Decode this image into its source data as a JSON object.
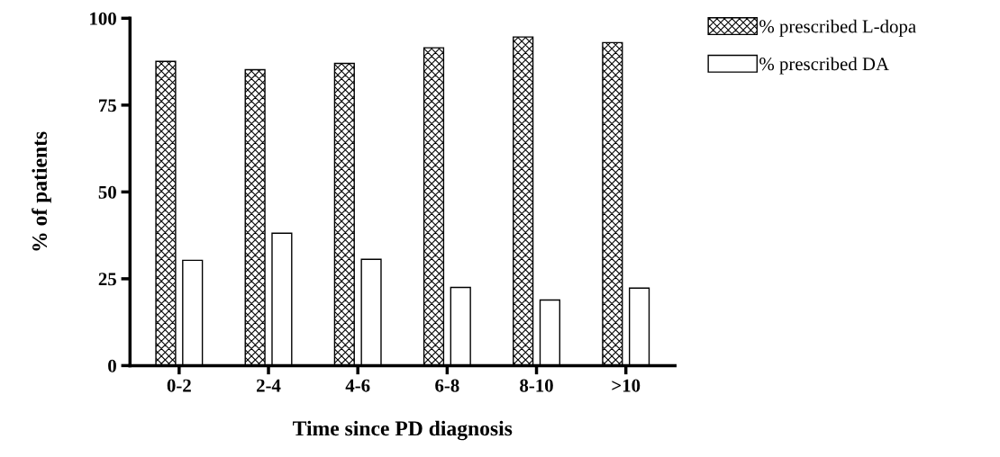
{
  "chart_data": {
    "type": "bar",
    "xlabel": "Time since PD diagnosis",
    "ylabel": "% of patients",
    "categories": [
      "0-2",
      "2-4",
      "4-6",
      "6-8",
      "8-10",
      ">10"
    ],
    "series": [
      {
        "name": "% prescribed L-dopa",
        "color": "#000000",
        "values": [
          87.6,
          85.2,
          87.0,
          91.5,
          94.6,
          93.0
        ]
      },
      {
        "name": "% prescribed DA",
        "color": "#ffffff",
        "values": [
          30.3,
          38.1,
          30.6,
          22.5,
          18.9,
          22.3
        ]
      }
    ],
    "ylim": [
      0,
      100
    ],
    "yticks": [
      0,
      25,
      50,
      75,
      100
    ],
    "grid": false,
    "legend": "top right"
  }
}
